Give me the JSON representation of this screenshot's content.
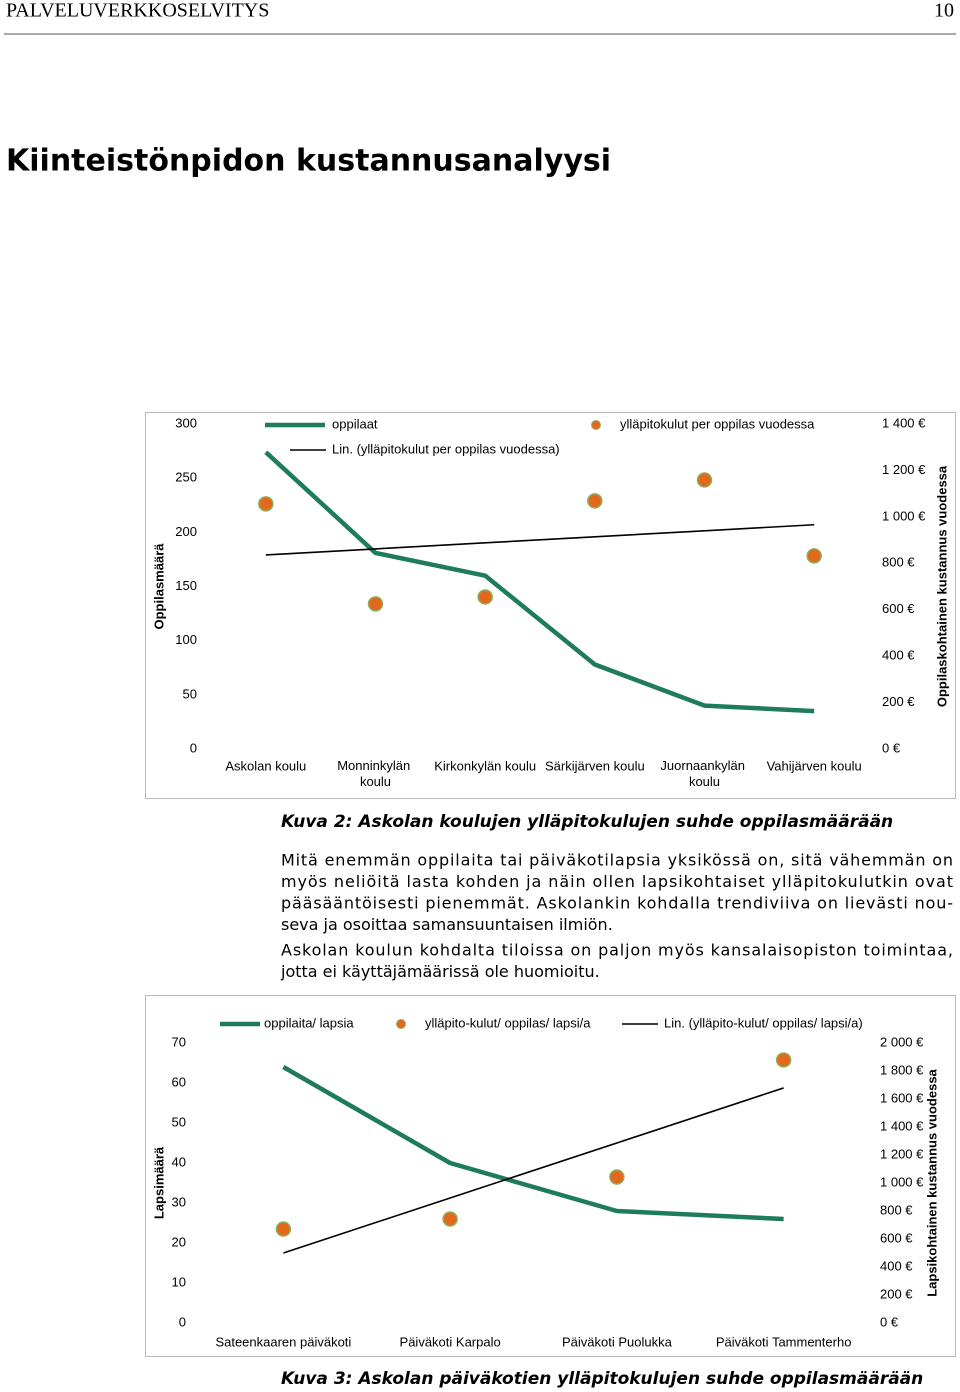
{
  "header": {
    "title": "PALVELUVERKKOSELVITYS",
    "page": "10"
  },
  "heading": "Kiinteistönpidon kustannusanalyysi",
  "chart_data": [
    {
      "type": "line",
      "categories": [
        "Askolan koulu",
        "Monninkylän koulu",
        "Kirkonkylän koulu",
        "Särkijärven koulu",
        "Juornaankylän koulu",
        "Vahijärven koulu"
      ],
      "ylabel": "Oppilasmäärä",
      "y2label": "Oppilaskohtainen kustannus vuodessa",
      "ylim": [
        0,
        300
      ],
      "yticks": [
        0,
        50,
        100,
        150,
        200,
        250,
        300
      ],
      "y2lim": [
        0,
        1400
      ],
      "y2ticks": [
        {
          "value": 0,
          "label": "0 €"
        },
        {
          "value": 200,
          "label": "200 €"
        },
        {
          "value": 400,
          "label": "400 €"
        },
        {
          "value": 600,
          "label": "600 €"
        },
        {
          "value": 800,
          "label": "800 €"
        },
        {
          "value": 1000,
          "label": "1 000 €"
        },
        {
          "value": 1200,
          "label": "1 200 €"
        },
        {
          "value": 1400,
          "label": "1 400 €"
        }
      ],
      "series": [
        {
          "name": "oppilaat",
          "kind": "line",
          "color": "#1e7b5c",
          "values": [
            274,
            181,
            160,
            78,
            40,
            35
          ]
        },
        {
          "name": "ylläpitokulut per oppilas vuodessa",
          "kind": "marker",
          "axis": "y2",
          "color": "#e2681e",
          "values": [
            1056,
            625,
            655,
            1069,
            1159,
            832
          ]
        },
        {
          "name": "Lin. (ylläpitokulut per oppilas vuodessa)",
          "kind": "trend",
          "axis": "y2",
          "color": "#000000",
          "values": [
            836,
            862,
            888,
            914,
            940,
            966
          ]
        }
      ]
    },
    {
      "type": "line",
      "categories": [
        "Sateenkaaren päiväkoti",
        "Päiväkoti Karpalo",
        "Päiväkoti Puolukka",
        "Päiväkoti Tammenterho"
      ],
      "ylabel": "Lapsimäärä",
      "y2label": "Lapsikohtainen kustannus vuodessa",
      "ylim": [
        0,
        70
      ],
      "yticks": [
        0,
        10,
        20,
        30,
        40,
        50,
        60,
        70
      ],
      "y2lim": [
        0,
        2000
      ],
      "y2ticks": [
        {
          "value": 0,
          "label": "0 €"
        },
        {
          "value": 200,
          "label": "200 €"
        },
        {
          "value": 400,
          "label": "400 €"
        },
        {
          "value": 600,
          "label": "600 €"
        },
        {
          "value": 800,
          "label": "800 €"
        },
        {
          "value": 1000,
          "label": "1 000 €"
        },
        {
          "value": 1200,
          "label": "1 200 €"
        },
        {
          "value": 1400,
          "label": "1 400 €"
        },
        {
          "value": 1600,
          "label": "1 600 €"
        },
        {
          "value": 1800,
          "label": "1 800 €"
        },
        {
          "value": 2000,
          "label": "2 000 €"
        }
      ],
      "series": [
        {
          "name": "oppilaita/ lapsia",
          "kind": "line",
          "color": "#1e7b5c",
          "values": [
            64,
            40,
            28,
            26
          ]
        },
        {
          "name": "ylläpito-kulut/ oppilas/ lapsi/a",
          "kind": "marker",
          "axis": "y2",
          "color": "#e2681e",
          "values": [
            671,
            743,
            1043,
            1879
          ]
        },
        {
          "name": "Lin. (ylläpito-kulut/ oppilas/ lapsi/a)",
          "kind": "trend",
          "axis": "y2",
          "color": "#000000",
          "values": [
            500,
            893,
            1286,
            1679
          ]
        }
      ]
    }
  ],
  "captions": [
    "Kuva 2: Askolan koulujen ylläpitokulujen suhde oppilasmäärään",
    "Kuva 3: Askolan päiväkotien ylläpitokulujen suhde oppilasmäärään"
  ],
  "paragraphs": [
    [
      "Mitä enemmän oppilaita tai päiväkotilapsia yksikössä on, sitä vähemmän on",
      "myös neliöitä lasta kohden ja näin ollen lapsikohtaiset ylläpitokulutkin ovat",
      "pääsääntöisesti pienemmät. Askolankin kohdalla trendiviiva on lievästi nou-",
      "seva ja osoittaa samansuuntaisen ilmiön."
    ],
    [
      "Askolan koulun kohdalta tiloissa on paljon myös kansalaisopiston toimintaa,",
      "jotta ei käyttäjämäärissä ole huomioitu."
    ]
  ]
}
